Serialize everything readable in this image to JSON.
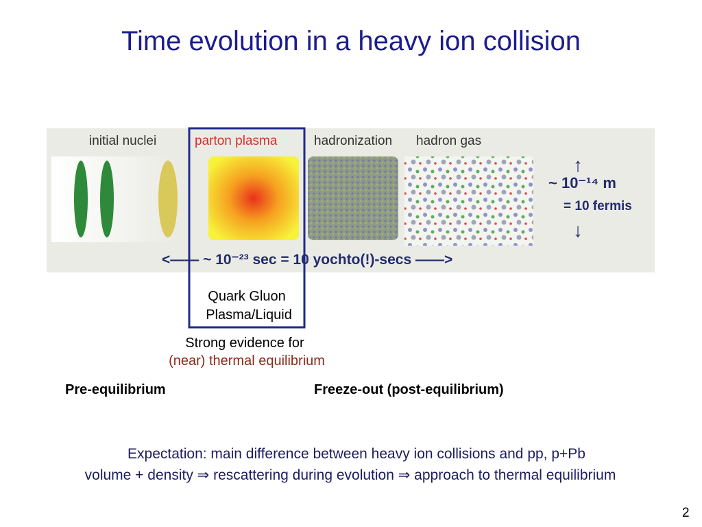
{
  "title": "Time evolution in a heavy ion collision",
  "figure": {
    "stages": [
      "initial nuclei",
      "parton plasma",
      "hadronization",
      "hadron gas"
    ],
    "length_scale": [
      "~ 10⁻¹⁴ m",
      "= 10 fermis"
    ],
    "time_scale": "<—— ~ 10⁻²³ sec = 10 yochto(!)-secs ——>"
  },
  "box_label": [
    "Quark Gluon",
    "Plasma/Liquid"
  ],
  "evidence": [
    "Strong evidence for",
    "(near) thermal equilibrium"
  ],
  "phases": [
    "Pre-equilibrium",
    "Freeze-out (post-equilibrium)"
  ],
  "expectation": [
    "Expectation: main difference between heavy ion collisions and pp, p+Pb",
    "volume + density ⇒ rescattering during evolution ⇒ approach to thermal equilibrium"
  ],
  "page_number": "2"
}
